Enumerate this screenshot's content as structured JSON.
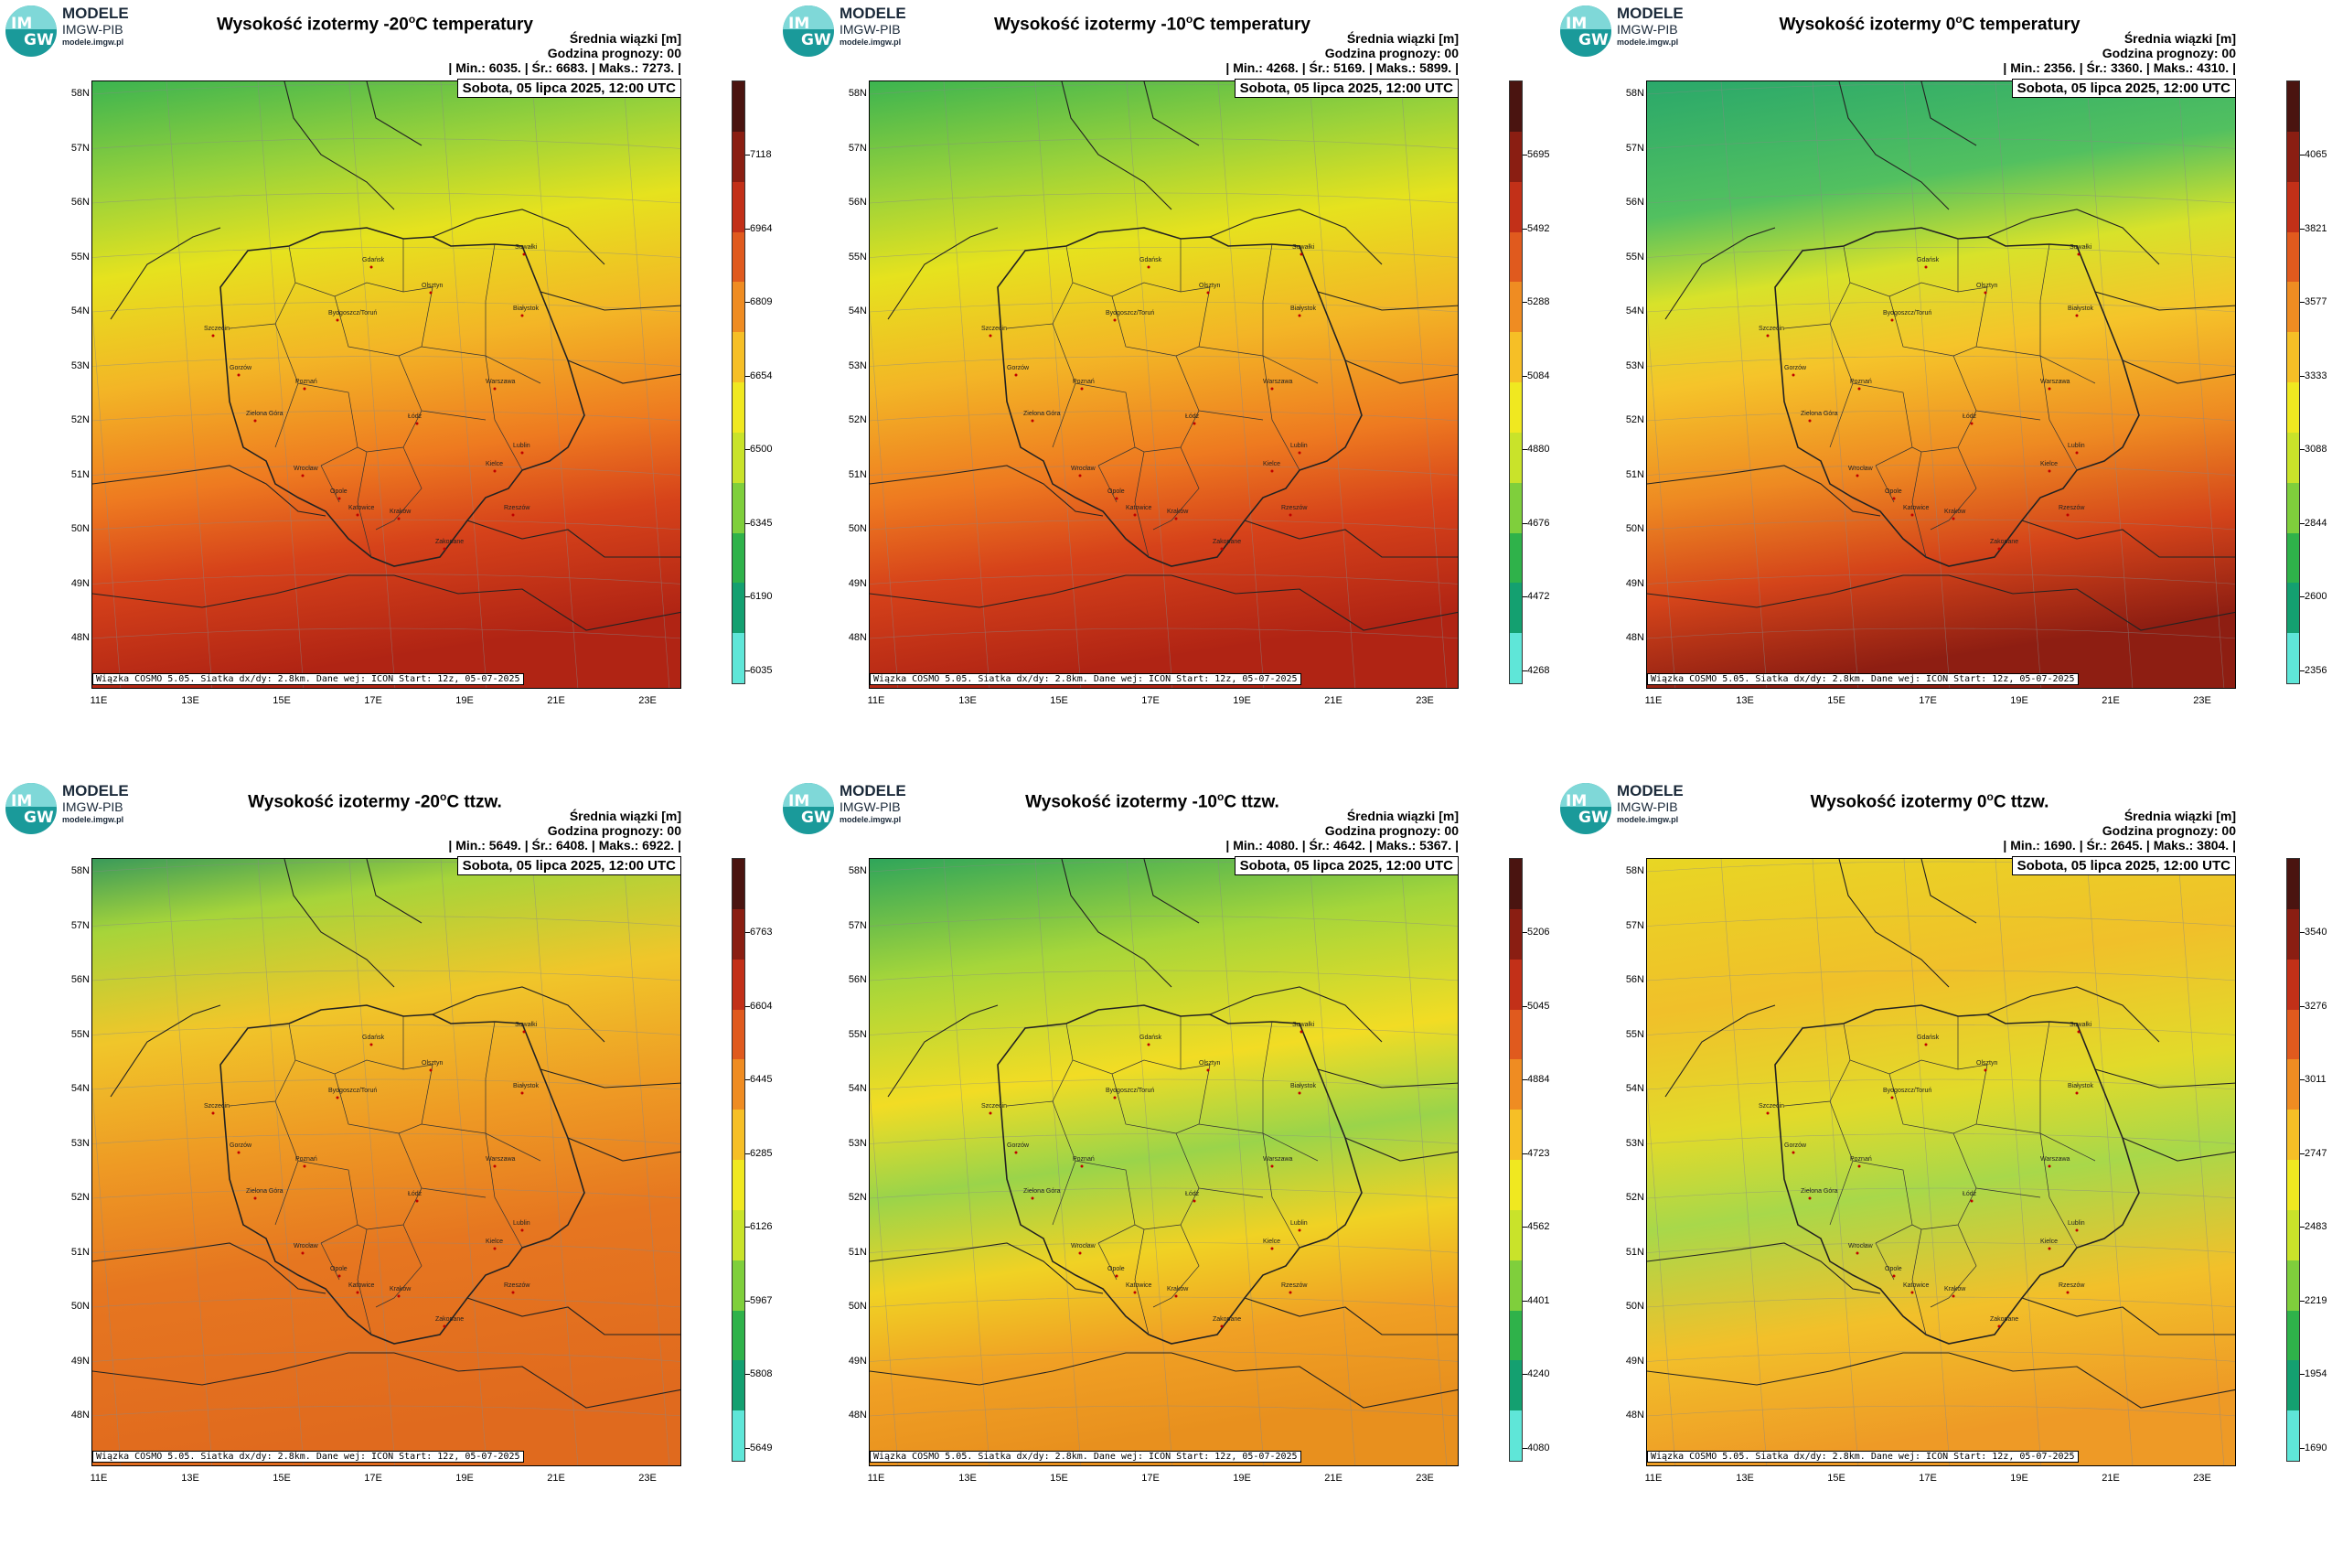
{
  "panels": [
    {
      "title_pre": "Wysokość izotermy -20",
      "title_sup": "o",
      "title_post": "C temperatury",
      "stats_label": "Średnia wiązki [m]",
      "forecast_hour": "Godzina prognozy: 00",
      "stats_line": "| Min.:    6035. | Śr.:    6683. | Maks.:   7273. |",
      "date": "Sobota, 05 lipca 2025, 12:00 UTC",
      "colorbar_ticks": [
        "7118",
        "6964",
        "6809",
        "6654",
        "6500",
        "6345",
        "6190",
        "6035"
      ],
      "palette": "warm"
    },
    {
      "title_pre": "Wysokość izotermy -10",
      "title_sup": "o",
      "title_post": "C temperatury",
      "stats_label": "Średnia wiązki [m]",
      "forecast_hour": "Godzina prognozy: 00",
      "stats_line": "| Min.:    4268. | Śr.:    5169. | Maks.:   5899. |",
      "date": "Sobota, 05 lipca 2025, 12:00 UTC",
      "colorbar_ticks": [
        "5695",
        "5492",
        "5288",
        "5084",
        "4880",
        "4676",
        "4472",
        "4268"
      ],
      "palette": "warm"
    },
    {
      "title_pre": "Wysokość izotermy 0",
      "title_sup": "o",
      "title_post": "C temperatury",
      "stats_label": "Średnia wiązki [m]",
      "forecast_hour": "Godzina prognozy: 00",
      "stats_line": "| Min.:    2356. | Śr.:    3360. | Maks.:   4310. |",
      "date": "Sobota, 05 lipca 2025, 12:00 UTC",
      "colorbar_ticks": [
        "4065",
        "3821",
        "3577",
        "3333",
        "3088",
        "2844",
        "2600",
        "2356"
      ],
      "palette": "cool"
    },
    {
      "title_pre": "Wysokość izotermy -20",
      "title_sup": "o",
      "title_post": "C ttzw.",
      "stats_label": "Średnia wiązki [m]",
      "forecast_hour": "Godzina prognozy: 00",
      "stats_line": "| Min.:    5649. | Śr.:    6408. | Maks.:   6922. |",
      "date": "Sobota, 05 lipca 2025, 12:00 UTC",
      "colorbar_ticks": [
        "6763",
        "6604",
        "6445",
        "6285",
        "6126",
        "5967",
        "5808",
        "5649"
      ],
      "palette": "orange"
    },
    {
      "title_pre": "Wysokość izotermy -10",
      "title_sup": "o",
      "title_post": "C ttzw.",
      "stats_label": "Średnia wiązki [m]",
      "forecast_hour": "Godzina prognozy: 00",
      "stats_line": "| Min.:    4080. | Śr.:    4642. | Maks.:   5367. |",
      "date": "Sobota, 05 lipca 2025, 12:00 UTC",
      "colorbar_ticks": [
        "5206",
        "5045",
        "4884",
        "4723",
        "4562",
        "4401",
        "4240",
        "4080"
      ],
      "palette": "mixed"
    },
    {
      "title_pre": "Wysokość izotermy 0",
      "title_sup": "o",
      "title_post": "C ttzw.",
      "stats_label": "Średnia wiązki [m]",
      "forecast_hour": "Godzina prognozy: 00",
      "stats_line": "| Min.:    1690. | Śr.:    2645. | Maks.:   3804. |",
      "date": "Sobota, 05 lipca 2025, 12:00 UTC",
      "colorbar_ticks": [
        "3540",
        "3276",
        "3011",
        "2747",
        "2483",
        "2219",
        "1954",
        "1690"
      ],
      "palette": "yellow"
    }
  ],
  "brand": {
    "line1": "MODELE",
    "line2": "IMGW-PIB",
    "line3": "modele.imgw.pl",
    "logo_top": "IM",
    "logo_bottom": "GW"
  },
  "footnote": "Wiązka COSMO 5.05. Siatka dx/dy: 2.8km. Dane wej: ICON Start: 12z, 05-07-2025",
  "lat_labels": [
    "58N",
    "57N",
    "56N",
    "55N",
    "54N",
    "53N",
    "52N",
    "51N",
    "50N",
    "49N",
    "48N"
  ],
  "lon_labels": [
    "11E",
    "13E",
    "15E",
    "17E",
    "19E",
    "21E",
    "23E"
  ],
  "cities": [
    "Gdańsk",
    "Suwałki",
    "Olsztyn",
    "Białystok",
    "Szczecin",
    "Bydgoszcz/Toruń",
    "Gorzów",
    "Poznań",
    "Warszawa",
    "Zielona Góra",
    "Łódź",
    "Lublin",
    "Wrocław",
    "Kielce",
    "Opole",
    "Rzeszów",
    "Katowice",
    "Kraków",
    "Zakopane"
  ],
  "colors": {
    "warm": [
      "#4a1410",
      "#8a1e12",
      "#c23018",
      "#e05a1e",
      "#ef8c22",
      "#f6bf26",
      "#f0e820",
      "#c9e32a",
      "#7fcf3c",
      "#2fb24a",
      "#14a070",
      "#5fe6d8"
    ],
    "cool": [
      "#4a1410",
      "#8a1e12",
      "#c23018",
      "#e05a1e",
      "#ef8c22",
      "#f6bf26",
      "#f0e820",
      "#c9e32a",
      "#7fcf3c",
      "#2fb24a",
      "#14a070",
      "#5fe6d8"
    ]
  }
}
